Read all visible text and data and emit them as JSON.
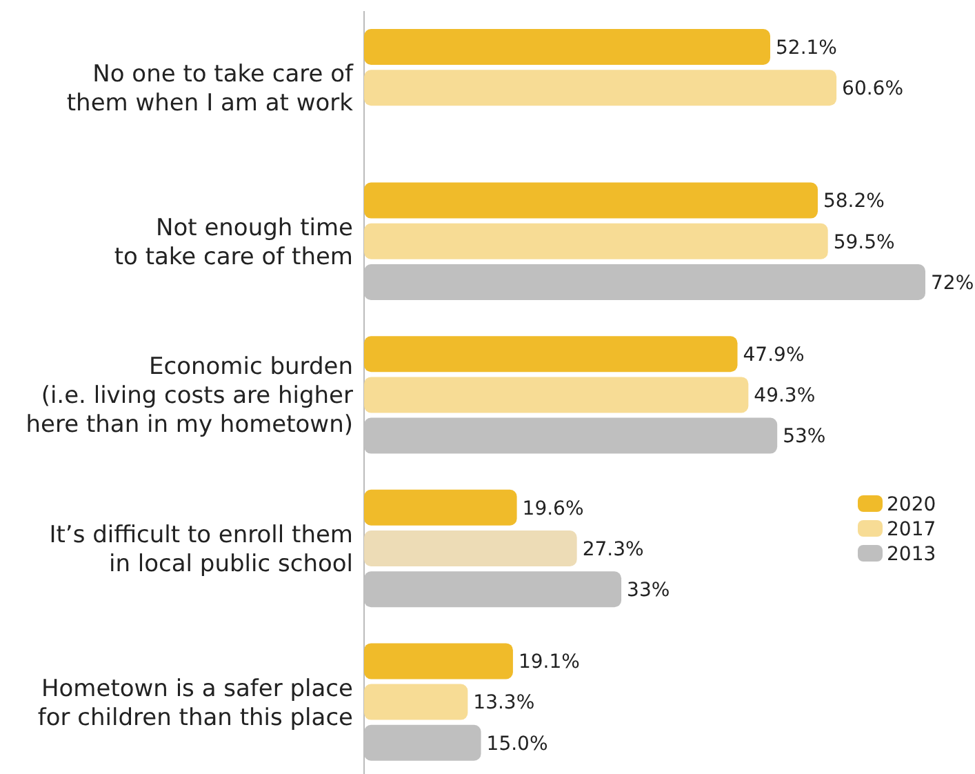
{
  "chart_data": {
    "type": "bar",
    "orientation": "horizontal",
    "categories": [
      "No one to take care of\nthem when I am at work",
      "Not enough time\nto take care of them",
      "Economic burden\n(i.e. living costs are higher\nhere than in my hometown)",
      "It’s difficult to enroll them\nin local public school",
      "Hometown is a safer place\nfor children than this place"
    ],
    "series": [
      {
        "name": "2020",
        "color": "#f0bb2a",
        "values": [
          52.1,
          58.2,
          47.9,
          19.6,
          19.1
        ],
        "value_labels": [
          "52.1%",
          "58.2%",
          "47.9%",
          "19.6%",
          "19.1%"
        ]
      },
      {
        "name": "2017",
        "color": "#f7dc95",
        "colors": [
          "#f7dc95",
          "#f7dc95",
          "#f7dc95",
          "#eddcb6",
          "#f7dc95"
        ],
        "values": [
          60.6,
          59.5,
          49.3,
          27.3,
          13.3
        ],
        "value_labels": [
          "60.6%",
          "59.5%",
          "49.3%",
          "27.3%",
          "13.3%"
        ]
      },
      {
        "name": "2013",
        "color": "#bfbfbf",
        "values": [
          null,
          72,
          53,
          33,
          15.0
        ],
        "value_labels": [
          null,
          "72%",
          "53%",
          "33%",
          "15.0%"
        ]
      }
    ],
    "legend": "right",
    "data_labels": true
  }
}
